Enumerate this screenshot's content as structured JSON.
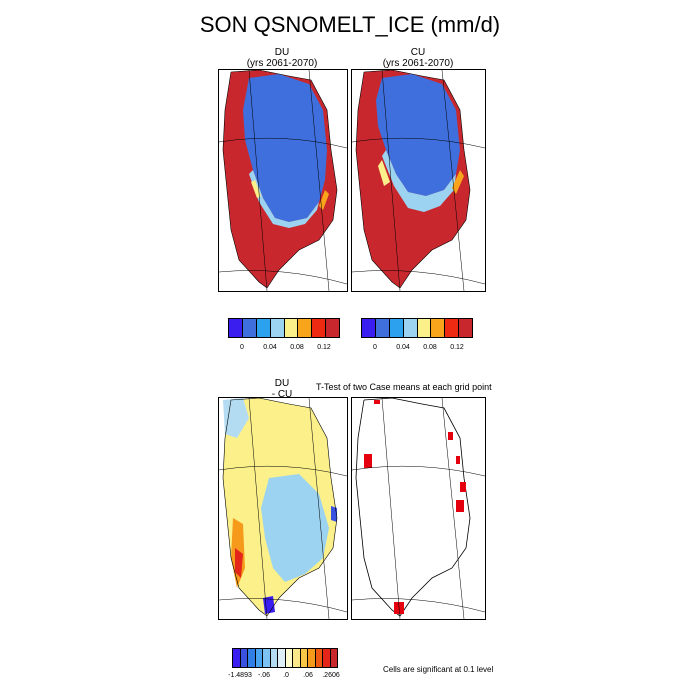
{
  "title": "SON QSNOMELT_ICE (mm/d)",
  "panels": {
    "du": {
      "case": "DU",
      "years": "(yrs 2061-2070)"
    },
    "cu": {
      "case": "CU",
      "years": "(yrs 2061-2070)"
    },
    "diff": {
      "line1": "DU",
      "line2": "- CU"
    },
    "ttest": {
      "title": "T-Test of two Case means at each grid point"
    }
  },
  "colorbar_means": {
    "colors": [
      "#3a1ef0",
      "#3f6fdc",
      "#2ca2ee",
      "#9bd3f0",
      "#fbf08a",
      "#f9a51b",
      "#ef2a12",
      "#c8282d"
    ],
    "labels": [
      "0",
      "0.04",
      "0.08",
      "0.12"
    ]
  },
  "colorbar_diff": {
    "colors": [
      "#3a1ef0",
      "#3b52e0",
      "#2f7fe6",
      "#4aa5f0",
      "#7cc2f2",
      "#b3dcf3",
      "#dfeff7",
      "#fffccf",
      "#fbe88a",
      "#f9c747",
      "#f59a1b",
      "#ef5a12",
      "#e4251a",
      "#c8282d"
    ],
    "labels": [
      "-1.4893",
      "-.06",
      ".0",
      ".06",
      ".2606"
    ]
  },
  "note": "Cells are significant at 0.1 level",
  "map_colors": {
    "high": "#c8282d",
    "low": "#3f6fdc",
    "mid": "#9bd3f0",
    "diff_warm": "#fbf08a",
    "diff_cool": "#9bd3f0",
    "sig": "#e4000f"
  }
}
